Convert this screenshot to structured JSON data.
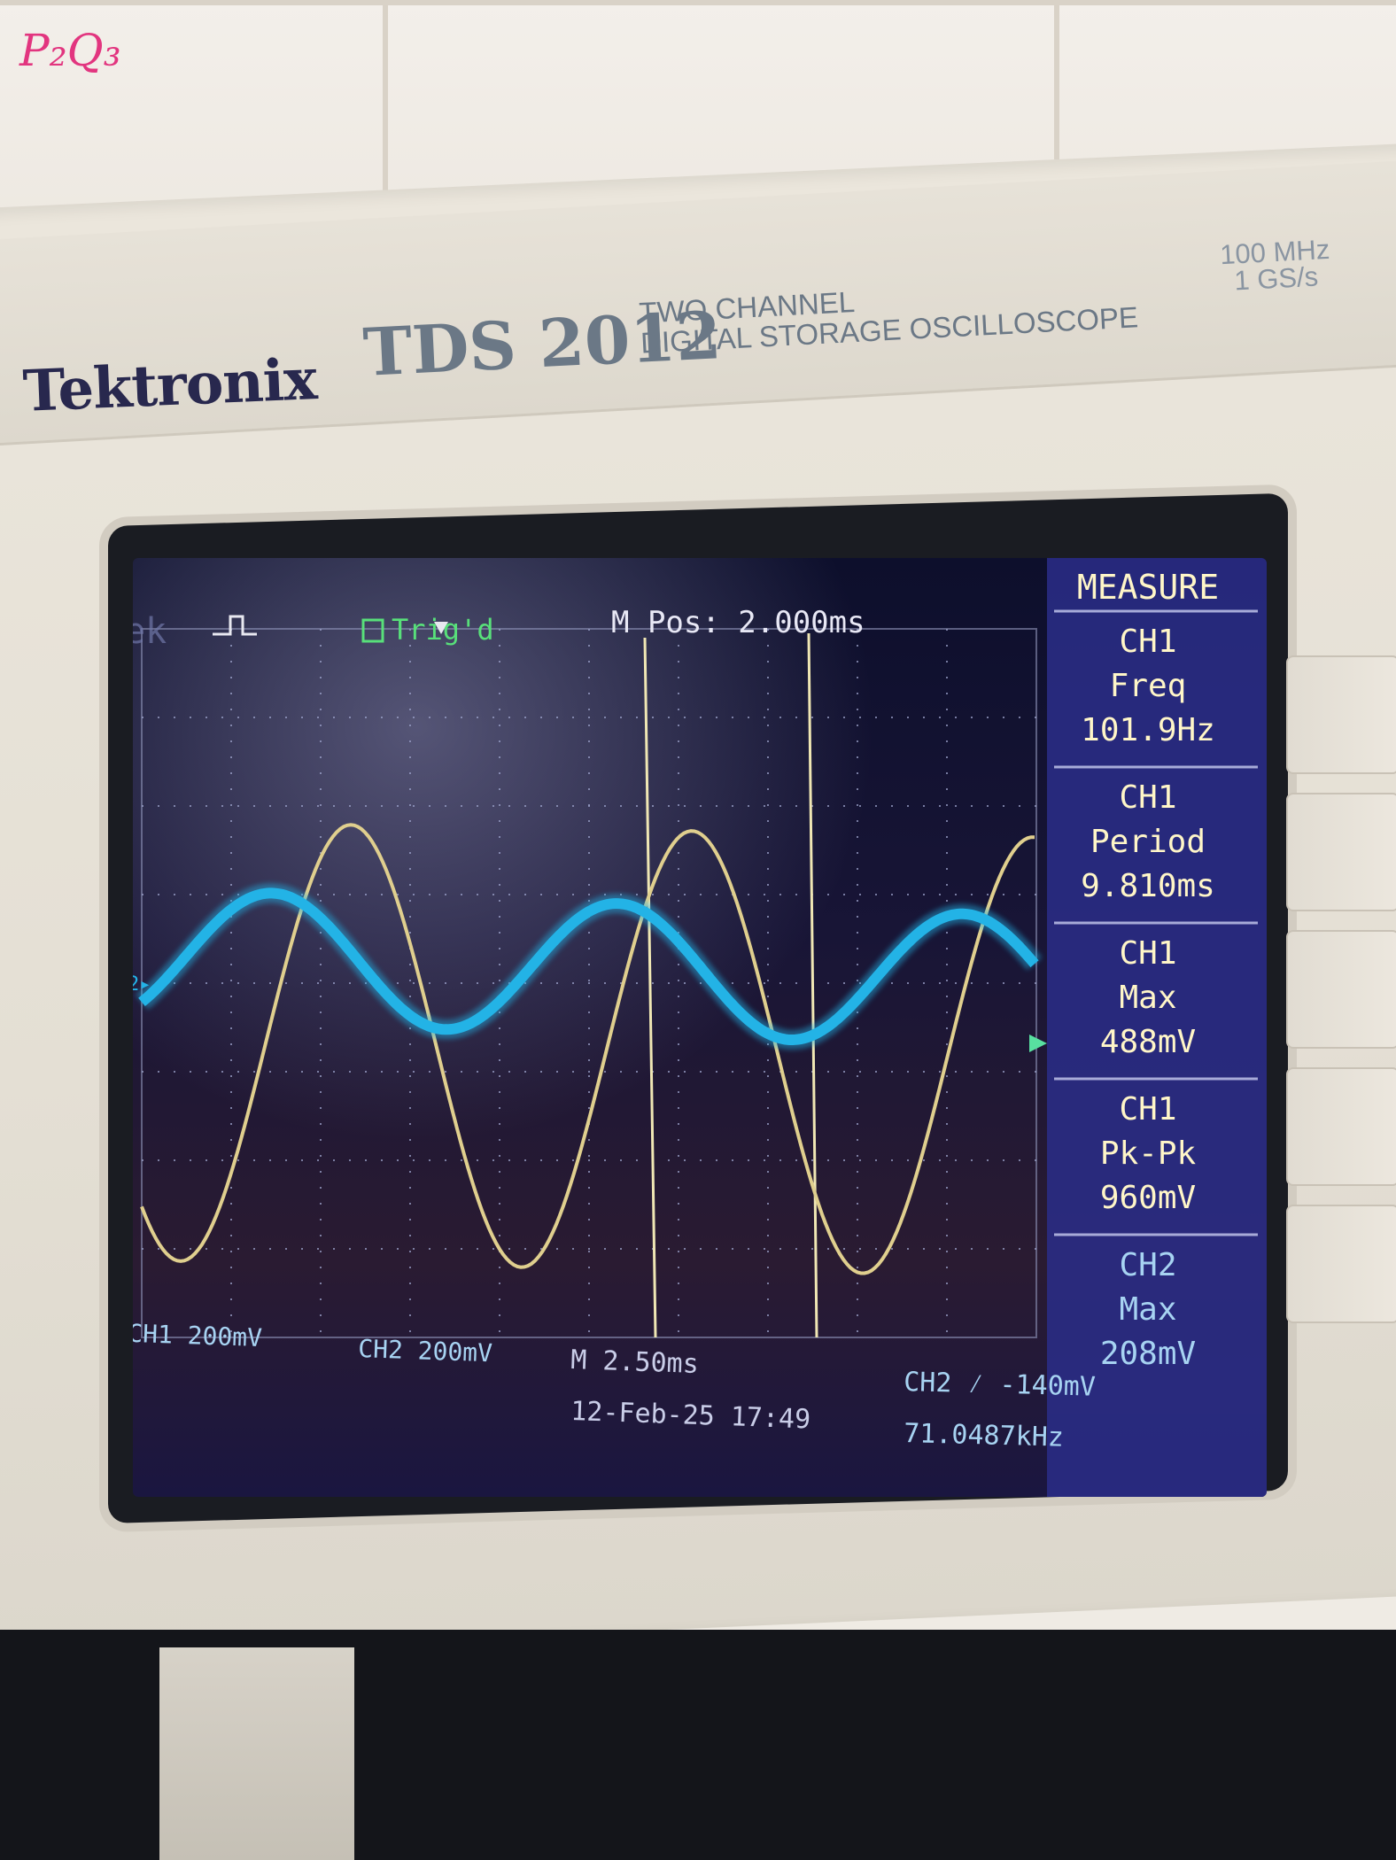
{
  "note": "P₂Q₃",
  "instrument": {
    "brand": "Tektronix",
    "model": "TDS 2012",
    "description_line1": "TWO CHANNEL",
    "description_line2": "DIGITAL STORAGE OSCILLOSCOPE",
    "bandwidth": "100 MHz",
    "sample_rate": "1 GS/s"
  },
  "display": {
    "tek_label": "Tek",
    "trigger_status": "Trig'd",
    "position": "M Pos: 2.000ms",
    "ch1_scale": "CH1  200mV",
    "ch2_scale": "CH2  200mV",
    "timebase": "M 2.50ms",
    "datetime": "12-Feb-25 17:49",
    "trigger_setting": "CH2 ⁄ -140mV",
    "trigger_freq": "71.0487kHz"
  },
  "measure": {
    "title": "MEASURE",
    "items": [
      {
        "channel": "CH1",
        "type": "Freq",
        "value": "101.9Hz"
      },
      {
        "channel": "CH1",
        "type": "Period",
        "value": "9.810ms"
      },
      {
        "channel": "CH1",
        "type": "Max",
        "value": "488mV"
      },
      {
        "channel": "CH1",
        "type": "Pk-Pk",
        "value": "960mV"
      },
      {
        "channel": "CH2",
        "type": "Max",
        "value": "208mV"
      }
    ]
  },
  "colors": {
    "ch1": "#e0cf8e",
    "ch2": "#23b3e6",
    "label": "#a7d3f2",
    "measure_text": "#fff6c8",
    "measure_bg": "#2e2f8c",
    "trig": "#58e07a"
  }
}
